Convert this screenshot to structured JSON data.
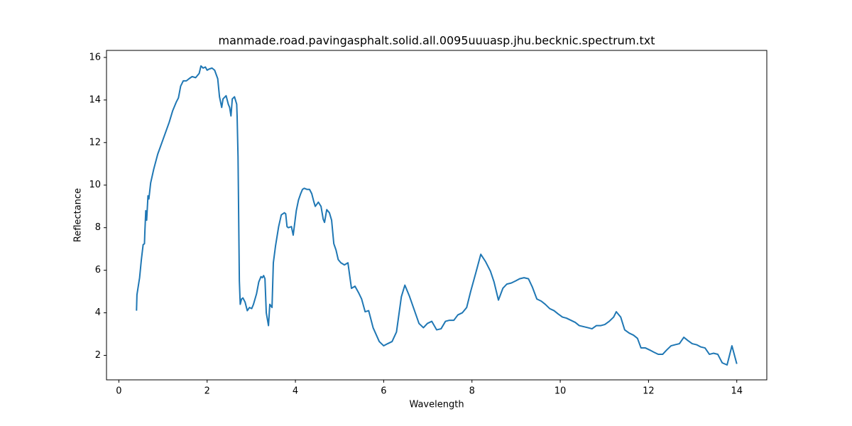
{
  "chart_data": {
    "type": "line",
    "title": "manmade.road.pavingasphalt.solid.all.0095uuuasp.jhu.becknic.spectrum.txt",
    "xlabel": "Wavelength",
    "ylabel": "Reflectance",
    "color": "#1f77b4",
    "grid": false,
    "xlim": [
      -0.28,
      14.68
    ],
    "ylim": [
      0.85,
      16.33
    ],
    "xticks": [
      0,
      2,
      4,
      6,
      8,
      10,
      12,
      14
    ],
    "yticks": [
      2,
      4,
      6,
      8,
      10,
      12,
      14,
      16
    ],
    "x": [
      0.4,
      0.41,
      0.47,
      0.51,
      0.55,
      0.58,
      0.59,
      0.61,
      0.63,
      0.66,
      0.68,
      0.72,
      0.79,
      0.88,
      1.01,
      1.14,
      1.22,
      1.3,
      1.35,
      1.4,
      1.46,
      1.53,
      1.59,
      1.66,
      1.74,
      1.82,
      1.86,
      1.91,
      1.96,
      2.0,
      2.04,
      2.11,
      2.17,
      2.24,
      2.28,
      2.33,
      2.36,
      2.43,
      2.48,
      2.51,
      2.54,
      2.57,
      2.62,
      2.67,
      2.68,
      2.7,
      2.73,
      2.75,
      2.78,
      2.81,
      2.86,
      2.91,
      2.96,
      3.01,
      3.05,
      3.12,
      3.17,
      3.22,
      3.25,
      3.28,
      3.31,
      3.34,
      3.39,
      3.42,
      3.47,
      3.5,
      3.55,
      3.62,
      3.68,
      3.75,
      3.78,
      3.81,
      3.84,
      3.91,
      3.95,
      4.02,
      4.07,
      4.12,
      4.16,
      4.2,
      4.26,
      4.32,
      4.37,
      4.42,
      4.45,
      4.52,
      4.58,
      4.63,
      4.66,
      4.71,
      4.77,
      4.82,
      4.87,
      4.92,
      4.97,
      5.03,
      5.11,
      5.19,
      5.27,
      5.35,
      5.43,
      5.5,
      5.58,
      5.66,
      5.76,
      5.9,
      6.0,
      6.09,
      6.19,
      6.29,
      6.4,
      6.48,
      6.58,
      6.69,
      6.8,
      6.9,
      6.99,
      7.09,
      7.2,
      7.3,
      7.4,
      7.49,
      7.59,
      7.68,
      7.78,
      7.88,
      7.97,
      8.09,
      8.2,
      8.31,
      8.42,
      8.5,
      8.6,
      8.7,
      8.79,
      8.89,
      8.99,
      9.08,
      9.18,
      9.28,
      9.37,
      9.47,
      9.57,
      9.66,
      9.76,
      9.86,
      9.95,
      10.05,
      10.14,
      10.24,
      10.34,
      10.43,
      10.53,
      10.63,
      10.72,
      10.82,
      10.92,
      11.01,
      11.11,
      11.21,
      11.27,
      11.37,
      11.46,
      11.56,
      11.66,
      11.75,
      11.83,
      11.93,
      12.03,
      12.12,
      12.22,
      12.32,
      12.41,
      12.51,
      12.6,
      12.7,
      12.8,
      12.89,
      12.99,
      13.09,
      13.18,
      13.28,
      13.38,
      13.47,
      13.57,
      13.67,
      13.78,
      13.89,
      14.0
    ],
    "values": [
      4.1,
      4.85,
      5.65,
      6.5,
      7.2,
      7.25,
      7.85,
      8.8,
      8.35,
      9.5,
      9.35,
      10.1,
      10.75,
      11.45,
      12.2,
      12.95,
      13.5,
      13.9,
      14.1,
      14.65,
      14.9,
      14.9,
      15.0,
      15.1,
      15.05,
      15.25,
      15.6,
      15.5,
      15.55,
      15.4,
      15.45,
      15.5,
      15.4,
      15.0,
      14.15,
      13.65,
      14.05,
      14.2,
      13.8,
      13.65,
      13.25,
      14.05,
      14.15,
      13.8,
      13.2,
      11.35,
      5.5,
      4.4,
      4.65,
      4.7,
      4.5,
      4.1,
      4.25,
      4.2,
      4.4,
      4.9,
      5.45,
      5.7,
      5.65,
      5.75,
      5.6,
      4.0,
      3.4,
      4.4,
      4.25,
      6.35,
      7.15,
      8.05,
      8.6,
      8.7,
      8.65,
      8.05,
      8.0,
      8.05,
      7.65,
      8.8,
      9.3,
      9.6,
      9.8,
      9.85,
      9.8,
      9.8,
      9.6,
      9.2,
      9.0,
      9.2,
      9.0,
      8.4,
      8.25,
      8.85,
      8.7,
      8.35,
      7.25,
      6.95,
      6.5,
      6.35,
      6.25,
      6.35,
      5.15,
      5.25,
      4.95,
      4.65,
      4.05,
      4.1,
      3.3,
      2.65,
      2.45,
      2.55,
      2.65,
      3.1,
      4.75,
      5.3,
      4.8,
      4.15,
      3.5,
      3.3,
      3.5,
      3.6,
      3.2,
      3.25,
      3.6,
      3.65,
      3.65,
      3.9,
      4.0,
      4.25,
      5.0,
      5.9,
      6.75,
      6.4,
      5.95,
      5.45,
      4.6,
      5.15,
      5.35,
      5.4,
      5.5,
      5.6,
      5.65,
      5.6,
      5.2,
      4.65,
      4.55,
      4.4,
      4.2,
      4.1,
      3.95,
      3.8,
      3.75,
      3.65,
      3.55,
      3.4,
      3.35,
      3.3,
      3.25,
      3.4,
      3.4,
      3.45,
      3.6,
      3.8,
      4.05,
      3.8,
      3.2,
      3.05,
      2.95,
      2.8,
      2.35,
      2.35,
      2.25,
      2.15,
      2.05,
      2.05,
      2.25,
      2.45,
      2.5,
      2.55,
      2.85,
      2.7,
      2.55,
      2.5,
      2.4,
      2.35,
      2.05,
      2.1,
      2.05,
      1.65,
      1.55,
      2.45,
      1.6
    ]
  }
}
